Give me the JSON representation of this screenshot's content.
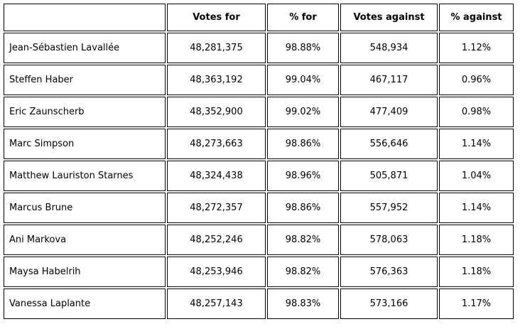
{
  "colors": {
    "background": "#ffffff",
    "border": "#000000",
    "text": "#000000"
  },
  "table": {
    "columns": [
      "",
      "Votes for",
      "% for",
      "Votes against",
      "% against"
    ],
    "rows": [
      {
        "name": "Jean-Sébastien Lavallée",
        "votes_for": "48,281,375",
        "pct_for": "98.88%",
        "votes_against": "548,934",
        "pct_against": "1.12%"
      },
      {
        "name": "Steffen Haber",
        "votes_for": "48,363,192",
        "pct_for": "99.04%",
        "votes_against": "467,117",
        "pct_against": "0.96%"
      },
      {
        "name": "Eric Zaunscherb",
        "votes_for": "48,352,900",
        "pct_for": "99.02%",
        "votes_against": "477,409",
        "pct_against": "0.98%"
      },
      {
        "name": "Marc Simpson",
        "votes_for": "48,273,663",
        "pct_for": "98.86%",
        "votes_against": "556,646",
        "pct_against": "1.14%"
      },
      {
        "name": "Matthew Lauriston Starnes",
        "votes_for": "48,324,438",
        "pct_for": "98.96%",
        "votes_against": "505,871",
        "pct_against": "1.04%"
      },
      {
        "name": "Marcus Brune",
        "votes_for": "48,272,357",
        "pct_for": "98.86%",
        "votes_against": "557,952",
        "pct_against": "1.14%"
      },
      {
        "name": "Ani Markova",
        "votes_for": "48,252,246",
        "pct_for": "98.82%",
        "votes_against": "578,063",
        "pct_against": "1.18%"
      },
      {
        "name": "Maysa Habelrih",
        "votes_for": "48,253,946",
        "pct_for": "98.82%",
        "votes_against": "576,363",
        "pct_against": "1.18%"
      },
      {
        "name": "Vanessa Laplante",
        "votes_for": "48,257,143",
        "pct_for": "98.83%",
        "votes_against": "573,166",
        "pct_against": "1.17%"
      }
    ]
  },
  "chart_data": {
    "type": "table",
    "columns": [
      "",
      "Votes for",
      "% for",
      "Votes against",
      "% against"
    ],
    "rows": [
      [
        "Jean-Sébastien Lavallée",
        48281375,
        98.88,
        548934,
        1.12
      ],
      [
        "Steffen Haber",
        48363192,
        99.04,
        467117,
        0.96
      ],
      [
        "Eric Zaunscherb",
        48352900,
        99.02,
        477409,
        0.98
      ],
      [
        "Marc Simpson",
        48273663,
        98.86,
        556646,
        1.14
      ],
      [
        "Matthew Lauriston Starnes",
        48324438,
        98.96,
        505871,
        1.04
      ],
      [
        "Marcus Brune",
        48272357,
        98.86,
        557952,
        1.14
      ],
      [
        "Ani Markova",
        48252246,
        98.82,
        578063,
        1.18
      ],
      [
        "Maysa Habelrih",
        48253946,
        98.82,
        576363,
        1.18
      ],
      [
        "Vanessa Laplante",
        48257143,
        98.83,
        573166,
        1.17
      ]
    ]
  }
}
